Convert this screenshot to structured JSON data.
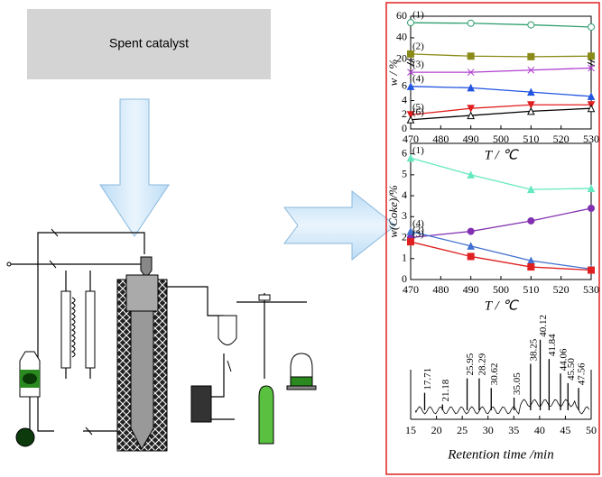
{
  "diagram": {
    "box_label": "Spent catalyst"
  },
  "chart_data": [
    {
      "type": "line",
      "xlabel": "T / ℃",
      "ylabel": "w / %",
      "x": [
        470,
        490,
        510,
        530
      ],
      "xlim": [
        470,
        530
      ],
      "xticks": [
        470,
        480,
        490,
        500,
        510,
        520,
        530
      ],
      "ylim": [
        0,
        60
      ],
      "yticks": [
        0,
        2,
        4,
        6,
        20,
        40,
        60
      ],
      "y_break": [
        9,
        18
      ],
      "series": [
        {
          "name": "(1)",
          "color": "#2e9e6e",
          "marker": "circle-open",
          "values": [
            54,
            53.5,
            52,
            50
          ]
        },
        {
          "name": "(2)",
          "color": "#8b8b1a",
          "marker": "square",
          "values": [
            25,
            23,
            22.5,
            23
          ]
        },
        {
          "name": "(3)",
          "color": "#b040d0",
          "marker": "x",
          "values": [
            8,
            8,
            8.3,
            8.6
          ]
        },
        {
          "name": "(4)",
          "color": "#2255e0",
          "marker": "triangle",
          "values": [
            6,
            5.8,
            5.2,
            4.6
          ]
        },
        {
          "name": "(5)",
          "color": "#e02020",
          "marker": "triangle-down",
          "values": [
            2,
            2.9,
            3.4,
            3.4
          ]
        },
        {
          "name": "(6)",
          "color": "#000000",
          "marker": "triangle-open",
          "values": [
            1.3,
            1.9,
            2.5,
            2.9
          ]
        }
      ]
    },
    {
      "type": "line",
      "xlabel": "T / ℃",
      "ylabel": "w(Coke)/%",
      "x": [
        470,
        490,
        510,
        530
      ],
      "xlim": [
        470,
        530
      ],
      "xticks": [
        470,
        480,
        490,
        500,
        510,
        520,
        530
      ],
      "ylim": [
        0,
        6.5
      ],
      "yticks": [
        0,
        1,
        2,
        3,
        4,
        5,
        6
      ],
      "series": [
        {
          "name": "(1)",
          "color": "#66e8c0",
          "marker": "triangle",
          "values": [
            5.8,
            5.0,
            4.3,
            4.35
          ]
        },
        {
          "name": "(2)",
          "color": "#8030b0",
          "marker": "circle",
          "values": [
            2.0,
            2.3,
            2.8,
            3.4
          ]
        },
        {
          "name": "(4)",
          "color": "#4070d0",
          "marker": "triangle",
          "values": [
            2.3,
            1.6,
            0.9,
            0.5
          ]
        },
        {
          "name": "(3)",
          "color": "#e02020",
          "marker": "square",
          "values": [
            1.8,
            1.1,
            0.6,
            0.45
          ]
        }
      ]
    },
    {
      "type": "chromatogram",
      "xlabel": "Retention time /min",
      "xlim": [
        15,
        50
      ],
      "xticks": [
        15,
        20,
        25,
        30,
        35,
        40,
        45,
        50
      ],
      "ylim": [
        0,
        100
      ],
      "color": "#000000",
      "x": [
        17.71,
        21.18,
        25.95,
        28.29,
        30.62,
        35.05,
        38.25,
        40.12,
        41.84,
        44.06,
        45.5,
        47.56
      ],
      "x_labels": [
        "17.71",
        "21.18",
        "25.95",
        "28.29",
        "30.62",
        "35.05",
        "38.25",
        "40.12",
        "41.84",
        "44.06",
        "45.50",
        "47.56"
      ],
      "values": [
        20,
        8,
        35,
        35,
        25,
        15,
        50,
        75,
        55,
        40,
        30,
        25
      ]
    }
  ]
}
